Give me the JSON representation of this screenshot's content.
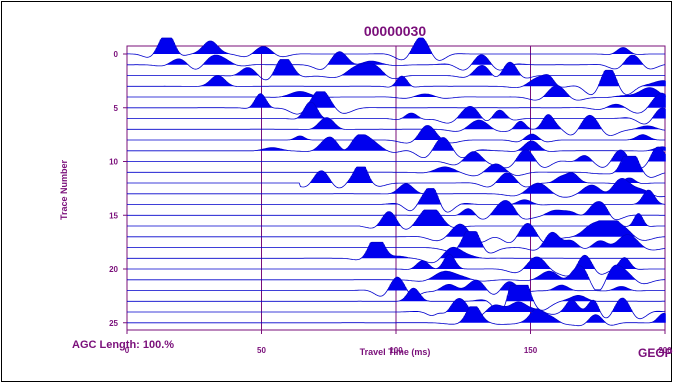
{
  "chart_data": {
    "type": "line",
    "title": "00000030",
    "xlabel": "Travel Time (ms)",
    "ylabel": "Trace Number",
    "xlim": [
      0,
      200
    ],
    "ylim": [
      0,
      26
    ],
    "x_ticks": [
      "0",
      "50",
      "100",
      "150",
      "200"
    ],
    "y_ticks": [
      "0",
      "5",
      "10",
      "15",
      "20",
      "25"
    ],
    "trace_count": 26,
    "fill": "positive",
    "grid": true,
    "colors": {
      "trace": "#0000cc",
      "fill": "#0000ee",
      "axis": "#7a0f7a",
      "grid": "#7a0f7a"
    }
  },
  "footer": {
    "agc": "AGC Length: 100.%",
    "brand": "GEOP"
  }
}
